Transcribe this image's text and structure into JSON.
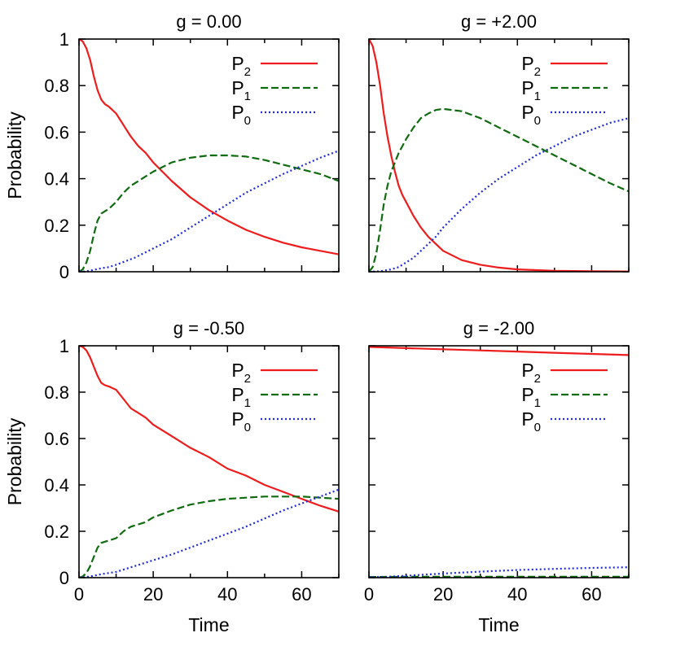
{
  "chart_data": [
    {
      "type": "line",
      "title": "g = 0.00",
      "xlabel": "",
      "ylabel": "Probability",
      "xlim": [
        0,
        70
      ],
      "ylim": [
        0,
        1
      ],
      "xticks": [],
      "yticks": [
        "0",
        "0.2",
        "0.4",
        "0.6",
        "0.8",
        "1"
      ],
      "legend": "top-right",
      "series": [
        {
          "name": "P",
          "subscript": "2",
          "color": "#ee1c1c",
          "dash": "solid",
          "x": [
            0,
            1,
            2,
            3,
            4,
            5,
            6,
            7,
            8,
            10,
            12,
            14,
            16,
            18,
            20,
            25,
            30,
            35,
            40,
            45,
            50,
            55,
            60,
            65,
            70
          ],
          "y": [
            1.0,
            0.99,
            0.96,
            0.91,
            0.84,
            0.78,
            0.74,
            0.72,
            0.71,
            0.68,
            0.63,
            0.58,
            0.54,
            0.51,
            0.47,
            0.39,
            0.32,
            0.265,
            0.22,
            0.18,
            0.15,
            0.125,
            0.105,
            0.09,
            0.075
          ]
        },
        {
          "name": "P",
          "subscript": "1",
          "color": "#0f6b0f",
          "dash": "dashed",
          "x": [
            0,
            1,
            2,
            3,
            4,
            5,
            6,
            7,
            8,
            10,
            12,
            14,
            16,
            18,
            20,
            25,
            30,
            35,
            40,
            45,
            50,
            55,
            60,
            65,
            70
          ],
          "y": [
            0,
            0.01,
            0.04,
            0.09,
            0.16,
            0.22,
            0.25,
            0.26,
            0.27,
            0.3,
            0.34,
            0.37,
            0.39,
            0.41,
            0.43,
            0.47,
            0.49,
            0.5,
            0.5,
            0.495,
            0.48,
            0.46,
            0.44,
            0.42,
            0.39
          ]
        },
        {
          "name": "P",
          "subscript": "0",
          "color": "#1f2bdd",
          "dash": "dotted",
          "x": [
            0,
            2,
            4,
            6,
            8,
            10,
            15,
            20,
            25,
            30,
            35,
            40,
            45,
            50,
            55,
            60,
            65,
            70
          ],
          "y": [
            0,
            0.002,
            0.008,
            0.015,
            0.02,
            0.03,
            0.06,
            0.1,
            0.14,
            0.19,
            0.24,
            0.29,
            0.34,
            0.38,
            0.42,
            0.455,
            0.49,
            0.52
          ]
        }
      ]
    },
    {
      "type": "line",
      "title": "g = +2.00",
      "xlabel": "",
      "ylabel": "",
      "xlim": [
        0,
        70
      ],
      "ylim": [
        0,
        1
      ],
      "xticks": [],
      "yticks": [],
      "legend": "top-right",
      "series": [
        {
          "name": "P",
          "subscript": "2",
          "color": "#ee1c1c",
          "dash": "solid",
          "x": [
            0,
            1,
            2,
            3,
            4,
            5,
            6,
            7,
            8,
            9,
            10,
            12,
            14,
            16,
            18,
            20,
            25,
            30,
            35,
            40,
            50,
            60,
            70
          ],
          "y": [
            1.0,
            0.97,
            0.9,
            0.8,
            0.68,
            0.58,
            0.5,
            0.43,
            0.37,
            0.33,
            0.3,
            0.24,
            0.19,
            0.15,
            0.12,
            0.09,
            0.05,
            0.03,
            0.018,
            0.01,
            0.004,
            0.002,
            0.001
          ]
        },
        {
          "name": "P",
          "subscript": "1",
          "color": "#0f6b0f",
          "dash": "dashed",
          "x": [
            0,
            1,
            2,
            3,
            4,
            5,
            6,
            7,
            8,
            10,
            12,
            14,
            16,
            18,
            20,
            25,
            30,
            35,
            40,
            45,
            50,
            55,
            60,
            65,
            70
          ],
          "y": [
            0,
            0.02,
            0.08,
            0.18,
            0.29,
            0.37,
            0.43,
            0.47,
            0.51,
            0.57,
            0.62,
            0.66,
            0.68,
            0.695,
            0.7,
            0.69,
            0.66,
            0.62,
            0.58,
            0.54,
            0.5,
            0.46,
            0.42,
            0.38,
            0.345
          ]
        },
        {
          "name": "P",
          "subscript": "0",
          "color": "#1f2bdd",
          "dash": "dotted",
          "x": [
            0,
            3,
            6,
            8,
            10,
            12,
            14,
            16,
            18,
            20,
            25,
            30,
            35,
            40,
            45,
            50,
            55,
            60,
            65,
            70
          ],
          "y": [
            0,
            0.002,
            0.01,
            0.02,
            0.04,
            0.06,
            0.09,
            0.12,
            0.15,
            0.19,
            0.27,
            0.34,
            0.4,
            0.45,
            0.5,
            0.54,
            0.58,
            0.61,
            0.64,
            0.66
          ]
        }
      ]
    },
    {
      "type": "line",
      "title": "g = -0.50",
      "xlabel": "Time",
      "ylabel": "Probability",
      "xlim": [
        0,
        70
      ],
      "ylim": [
        0,
        1
      ],
      "xticks": [
        "0",
        "20",
        "40",
        "60"
      ],
      "yticks": [
        "0",
        "0.2",
        "0.4",
        "0.6",
        "0.8",
        "1"
      ],
      "legend": "top-right",
      "series": [
        {
          "name": "P",
          "subscript": "2",
          "color": "#ee1c1c",
          "dash": "solid",
          "x": [
            0,
            1,
            2,
            3,
            4,
            5,
            6,
            7,
            8,
            10,
            12,
            14,
            16,
            18,
            20,
            25,
            30,
            35,
            40,
            45,
            50,
            55,
            60,
            65,
            70
          ],
          "y": [
            1.0,
            0.995,
            0.98,
            0.95,
            0.91,
            0.87,
            0.84,
            0.83,
            0.825,
            0.81,
            0.77,
            0.73,
            0.71,
            0.69,
            0.66,
            0.61,
            0.56,
            0.52,
            0.47,
            0.44,
            0.4,
            0.37,
            0.34,
            0.31,
            0.285
          ]
        },
        {
          "name": "P",
          "subscript": "1",
          "color": "#0f6b0f",
          "dash": "dashed",
          "x": [
            0,
            1,
            2,
            3,
            4,
            5,
            6,
            7,
            8,
            10,
            12,
            14,
            16,
            18,
            20,
            25,
            30,
            35,
            40,
            45,
            50,
            55,
            60,
            65,
            70
          ],
          "y": [
            0,
            0.005,
            0.02,
            0.05,
            0.09,
            0.13,
            0.15,
            0.155,
            0.16,
            0.17,
            0.2,
            0.22,
            0.23,
            0.24,
            0.26,
            0.29,
            0.315,
            0.33,
            0.34,
            0.345,
            0.35,
            0.35,
            0.35,
            0.345,
            0.34
          ]
        },
        {
          "name": "P",
          "subscript": "0",
          "color": "#1f2bdd",
          "dash": "dotted",
          "x": [
            0,
            2,
            4,
            6,
            8,
            10,
            15,
            20,
            25,
            30,
            35,
            40,
            45,
            50,
            55,
            60,
            65,
            70
          ],
          "y": [
            0,
            0.003,
            0.008,
            0.015,
            0.02,
            0.025,
            0.05,
            0.075,
            0.1,
            0.13,
            0.16,
            0.19,
            0.22,
            0.255,
            0.29,
            0.32,
            0.35,
            0.38
          ]
        }
      ]
    },
    {
      "type": "line",
      "title": "g = -2.00",
      "xlabel": "Time",
      "ylabel": "",
      "xlim": [
        0,
        70
      ],
      "ylim": [
        0,
        1
      ],
      "xticks": [
        "0",
        "20",
        "40",
        "60"
      ],
      "yticks": [],
      "legend": "top-right",
      "series": [
        {
          "name": "P",
          "subscript": "2",
          "color": "#ee1c1c",
          "dash": "solid",
          "x": [
            0,
            10,
            20,
            30,
            40,
            50,
            60,
            70
          ],
          "y": [
            0.995,
            0.99,
            0.985,
            0.98,
            0.975,
            0.97,
            0.965,
            0.96
          ]
        },
        {
          "name": "P",
          "subscript": "1",
          "color": "#0f6b0f",
          "dash": "dashed",
          "x": [
            0,
            10,
            20,
            30,
            40,
            50,
            60,
            70
          ],
          "y": [
            0.003,
            0.004,
            0.004,
            0.004,
            0.004,
            0.004,
            0.004,
            0.004
          ]
        },
        {
          "name": "P",
          "subscript": "0",
          "color": "#1f2bdd",
          "dash": "dotted",
          "x": [
            0,
            5,
            10,
            20,
            30,
            40,
            50,
            60,
            70
          ],
          "y": [
            0.002,
            0.004,
            0.008,
            0.018,
            0.026,
            0.033,
            0.038,
            0.042,
            0.045
          ]
        }
      ]
    }
  ]
}
